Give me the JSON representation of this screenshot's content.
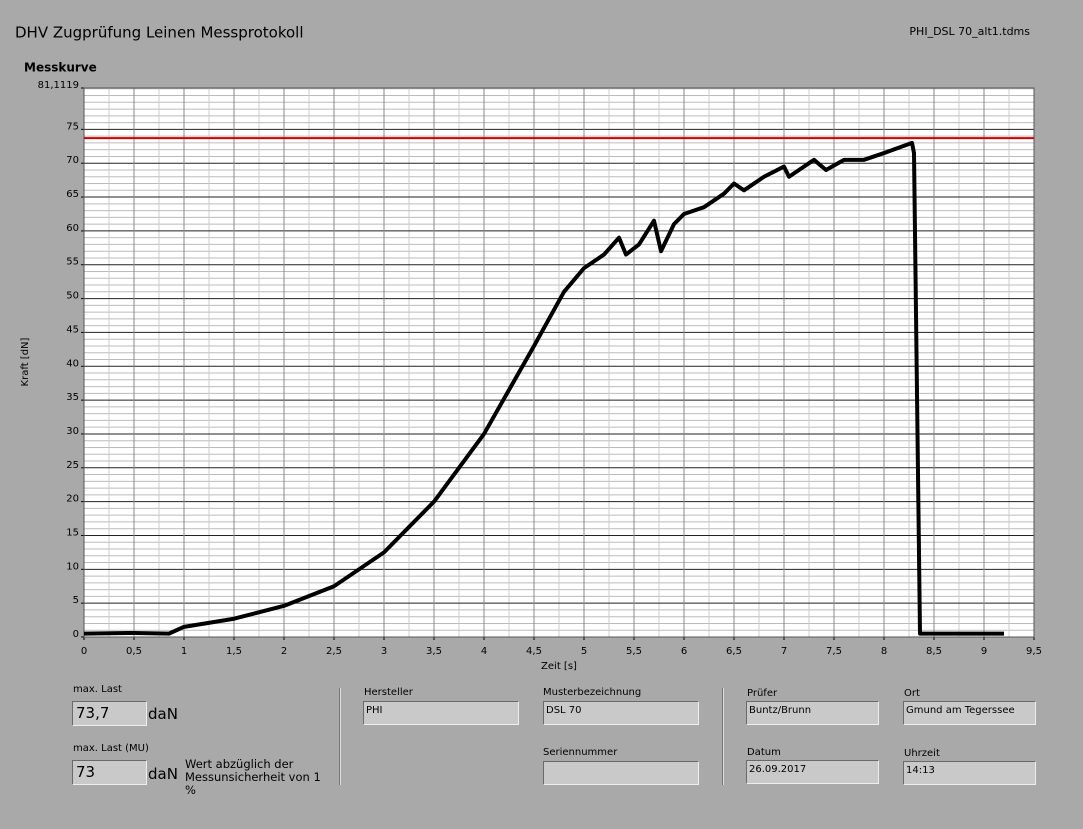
{
  "header": {
    "title": "DHV Zugprüfung Leinen Messprotokoll",
    "file": "PHI_DSL 70_alt1.tdms"
  },
  "chart_data": {
    "type": "line",
    "title": "Messkurve",
    "x_label": "Zeit [s]",
    "y_label": "Kraft [dN]",
    "xlim": [
      0,
      9.5
    ],
    "ylim": [
      0,
      81.1119
    ],
    "xticks": [
      0,
      {
        "value": 0.5,
        "label": "0,5"
      },
      1,
      {
        "value": 1.5,
        "label": "1,5"
      },
      2,
      {
        "value": 2.5,
        "label": "2,5"
      },
      3,
      {
        "value": 3.5,
        "label": "3,5"
      },
      4,
      {
        "value": 4.5,
        "label": "4,5"
      },
      5,
      {
        "value": 5.5,
        "label": "5,5"
      },
      6,
      {
        "value": 6.5,
        "label": "6,5"
      },
      7,
      {
        "value": 7.5,
        "label": "7,5"
      },
      8,
      {
        "value": 8.5,
        "label": "8,5"
      },
      9,
      {
        "value": 9.5,
        "label": "9,5"
      }
    ],
    "yticks": [
      0,
      5,
      10,
      15,
      20,
      25,
      30,
      35,
      40,
      45,
      50,
      55,
      60,
      65,
      70,
      75,
      {
        "value": 81.1119,
        "label": "81,1119"
      }
    ],
    "grid": true,
    "x": [
      0,
      0.5,
      0.85,
      1.0,
      1.5,
      2.0,
      2.5,
      3.0,
      3.5,
      4.0,
      4.5,
      4.8,
      5.0,
      5.2,
      5.35,
      5.42,
      5.55,
      5.7,
      5.77,
      5.9,
      6.0,
      6.2,
      6.4,
      6.5,
      6.6,
      6.8,
      7.0,
      7.05,
      7.3,
      7.42,
      7.6,
      7.8,
      8.0,
      8.28,
      8.3,
      8.36,
      9.2
    ],
    "series": [
      {
        "color": "#000000",
        "values": [
          0.5,
          0.6,
          0.5,
          1.5,
          2.7,
          4.6,
          7.5,
          12.5,
          20,
          30,
          43,
          51,
          54.5,
          56.5,
          59,
          56.5,
          58,
          61.5,
          57,
          61,
          62.5,
          63.5,
          65.5,
          67,
          66,
          68,
          69.5,
          68,
          70.5,
          69,
          70.5,
          70.5,
          71.5,
          73,
          71.5,
          0.5,
          0.5
        ]
      }
    ],
    "max_line": {
      "value": 73.7,
      "color": "#d00000"
    }
  },
  "panel": {
    "max_last": {
      "label": "max. Last",
      "value": "73,7",
      "unit": "daN"
    },
    "max_last_mu": {
      "label": "max. Last (MU)",
      "value": "73",
      "unit": "daN",
      "note": "Wert abzüglich der Messunsicherheit von 1 %"
    },
    "hersteller": {
      "label": "Hersteller",
      "value": "PHI"
    },
    "musterbezeichnung": {
      "label": "Musterbezeichnung",
      "value": "DSL 70"
    },
    "seriennummer": {
      "label": "Seriennummer"
    },
    "pruefer": {
      "label": "Prüfer",
      "value": "Buntz/Brunn"
    },
    "ort": {
      "label": "Ort",
      "value": "Gmund am Tegerssee"
    },
    "datum": {
      "label": "Datum",
      "value": "26.09.2017"
    },
    "uhrzeit": {
      "label": "Uhrzeit",
      "value": "14:13"
    }
  }
}
